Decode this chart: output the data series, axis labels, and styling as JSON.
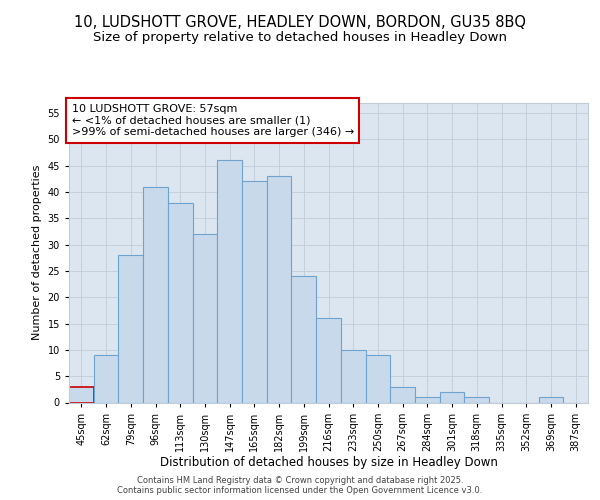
{
  "title1": "10, LUDSHOTT GROVE, HEADLEY DOWN, BORDON, GU35 8BQ",
  "title2": "Size of property relative to detached houses in Headley Down",
  "xlabel": "Distribution of detached houses by size in Headley Down",
  "ylabel": "Number of detached properties",
  "categories": [
    "45sqm",
    "62sqm",
    "79sqm",
    "96sqm",
    "113sqm",
    "130sqm",
    "147sqm",
    "165sqm",
    "182sqm",
    "199sqm",
    "216sqm",
    "233sqm",
    "250sqm",
    "267sqm",
    "284sqm",
    "301sqm",
    "318sqm",
    "335sqm",
    "352sqm",
    "369sqm",
    "387sqm"
  ],
  "bar_values": [
    3,
    9,
    28,
    41,
    38,
    32,
    46,
    42,
    43,
    24,
    16,
    10,
    9,
    3,
    1,
    2,
    1,
    0,
    0,
    1,
    0
  ],
  "bar_fill": "#c9d9ec",
  "bar_edge": "#6ea3d0",
  "highlight_bar_index": 0,
  "highlight_bar_edge": "#cc0000",
  "annotation_box_text": "10 LUDSHOTT GROVE: 57sqm\n← <1% of detached houses are smaller (1)\n>99% of semi-detached houses are larger (346) →",
  "annotation_box_color": "#ffffff",
  "annotation_box_edge": "#cc0000",
  "ylim": [
    0,
    57
  ],
  "yticks": [
    0,
    5,
    10,
    15,
    20,
    25,
    30,
    35,
    40,
    45,
    50,
    55
  ],
  "grid_color": "#c0ccd8",
  "bg_color": "#dce6f0",
  "footer": "Contains HM Land Registry data © Crown copyright and database right 2025.\nContains public sector information licensed under the Open Government Licence v3.0.",
  "title1_fontsize": 10.5,
  "title2_fontsize": 9.5,
  "ylabel_fontsize": 8,
  "xlabel_fontsize": 8.5,
  "tick_fontsize": 7,
  "annotation_fontsize": 8,
  "footer_fontsize": 6
}
